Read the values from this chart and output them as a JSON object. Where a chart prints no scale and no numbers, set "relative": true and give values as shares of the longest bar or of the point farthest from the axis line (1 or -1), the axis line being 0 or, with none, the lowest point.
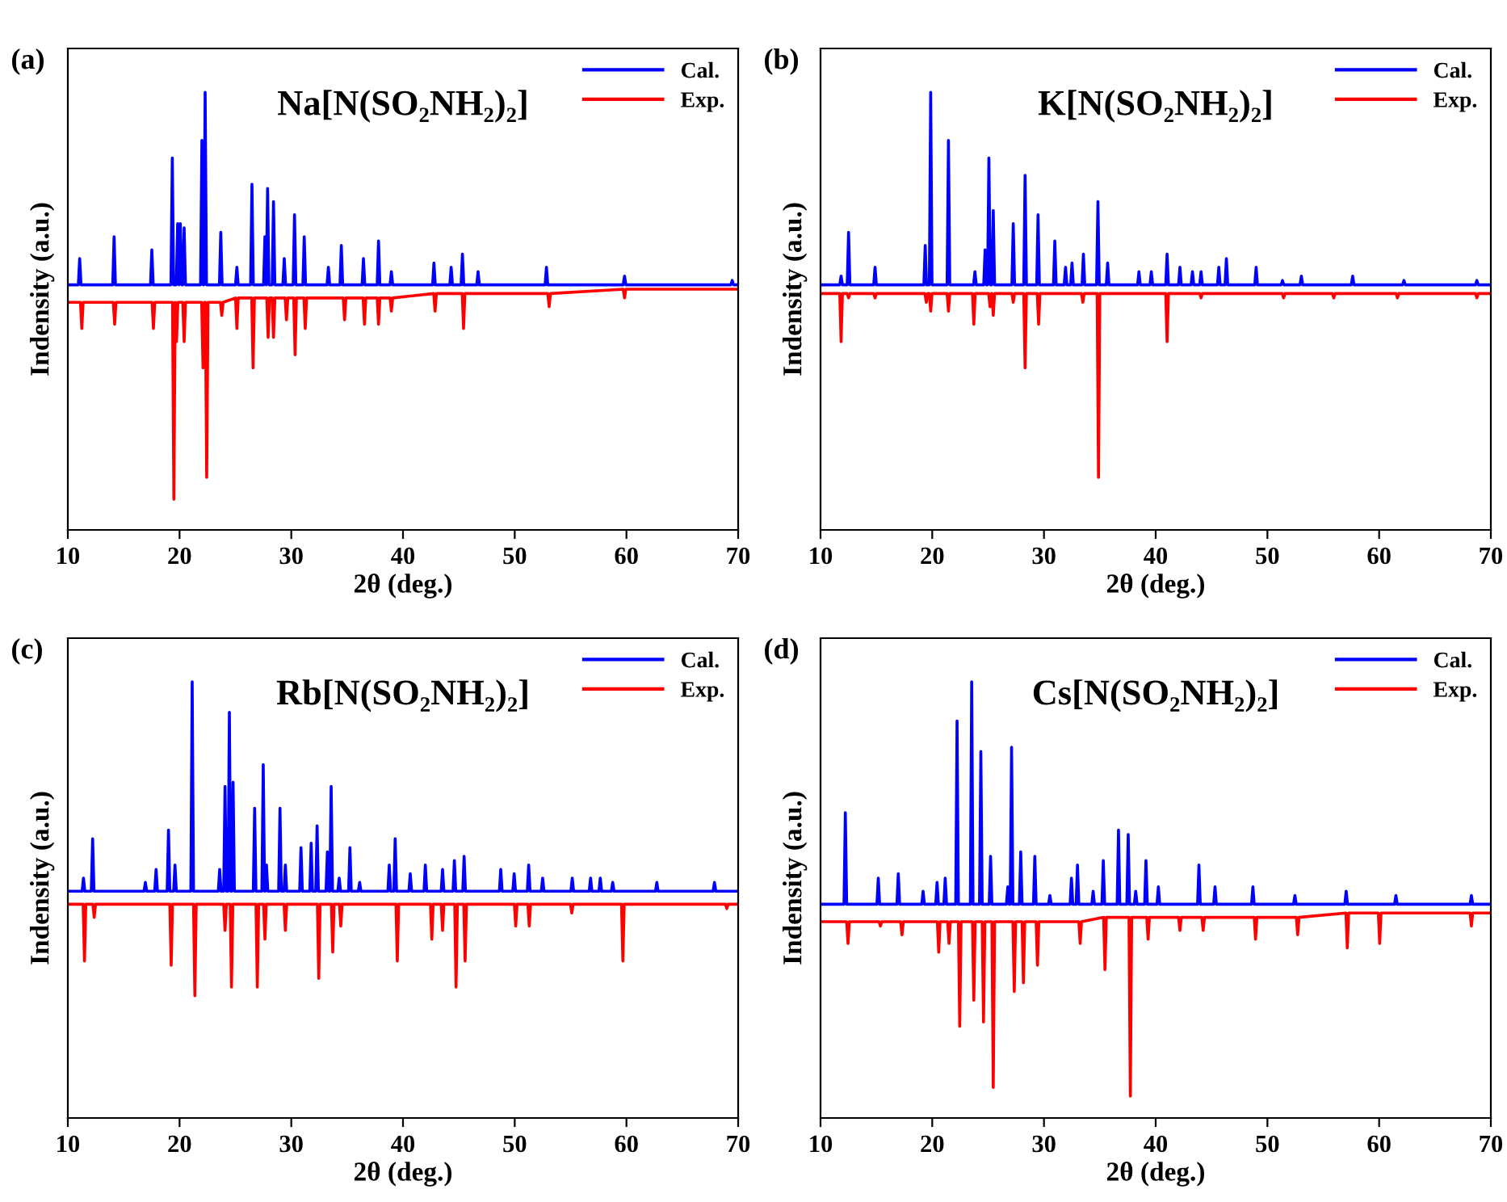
{
  "chart_data": [
    {
      "type": "line",
      "title": "Na[N(SO₂NH₂)₂]",
      "xlabel": "2θ (deg.)",
      "ylabel": "Indensity (a.u.)",
      "annotations": [
        "(a)"
      ],
      "relative": true,
      "xlim": [
        10,
        70
      ],
      "xticks": [
        10,
        20,
        30,
        40,
        50,
        60,
        70
      ],
      "tick_labels": "x",
      "legend": "top right",
      "grid": false,
      "marker": "none",
      "line_style": "solid",
      "series": [
        {
          "name": "Cal.",
          "color": "#0000ff",
          "x": [
            10,
            10.94,
            11.06,
            11.18,
            14.02,
            14.14,
            14.26,
            17.4,
            17.52,
            17.64,
            19.23,
            19.35,
            19.47,
            19.71,
            19.83,
            19.95,
            19.95,
            20.07,
            20.19,
            20.29,
            20.41,
            20.53,
            21.88,
            22.0,
            22.12,
            22.17,
            22.29,
            22.41,
            23.57,
            23.69,
            23.81,
            25.01,
            25.13,
            25.25,
            26.36,
            26.48,
            26.6,
            27.52,
            27.64,
            27.76,
            27.76,
            27.88,
            28.0,
            28.29,
            28.41,
            28.53,
            29.25,
            29.37,
            29.49,
            30.17,
            30.29,
            30.41,
            31.04,
            31.16,
            31.28,
            33.2,
            33.32,
            33.44,
            34.36,
            34.48,
            34.6,
            36.34,
            36.46,
            36.58,
            37.69,
            37.81,
            37.93,
            38.84,
            38.96,
            39.08,
            42.65,
            42.77,
            42.89,
            44.19,
            44.31,
            44.43,
            45.2,
            45.32,
            45.44,
            46.6,
            46.72,
            46.84,
            52.72,
            52.84,
            52.96,
            59.71,
            59.83,
            59.95,
            69.35,
            69.47,
            69.59,
            70
          ],
          "values": [
            0.56,
            0.56,
            0.62,
            0.56,
            0.56,
            0.67,
            0.56,
            0.56,
            0.64,
            0.56,
            0.56,
            0.85,
            0.56,
            0.56,
            0.7,
            0.56,
            0.56,
            0.7,
            0.56,
            0.56,
            0.69,
            0.56,
            0.56,
            0.89,
            0.56,
            0.56,
            1.0,
            0.56,
            0.56,
            0.68,
            0.56,
            0.56,
            0.6,
            0.56,
            0.56,
            0.79,
            0.56,
            0.56,
            0.67,
            0.56,
            0.56,
            0.78,
            0.56,
            0.56,
            0.75,
            0.56,
            0.56,
            0.62,
            0.56,
            0.56,
            0.72,
            0.56,
            0.56,
            0.67,
            0.56,
            0.56,
            0.6,
            0.56,
            0.56,
            0.65,
            0.56,
            0.56,
            0.62,
            0.56,
            0.56,
            0.66,
            0.56,
            0.56,
            0.59,
            0.56,
            0.56,
            0.61,
            0.56,
            0.56,
            0.6,
            0.56,
            0.56,
            0.63,
            0.56,
            0.56,
            0.59,
            0.56,
            0.56,
            0.6,
            0.56,
            0.56,
            0.58,
            0.56,
            0.56,
            0.57,
            0.56,
            0.56
          ]
        },
        {
          "name": "Exp.",
          "color": "#ff0000",
          "x": [
            10,
            11.13,
            11.25,
            11.37,
            14.07,
            14.19,
            14.31,
            17.54,
            17.66,
            17.78,
            19.37,
            19.49,
            19.61,
            19.61,
            19.73,
            19.85,
            20.29,
            20.41,
            20.53,
            21.98,
            22.1,
            22.22,
            22.31,
            22.43,
            22.55,
            23.66,
            23.78,
            23.9,
            25.01,
            25.13,
            25.25,
            26.46,
            26.58,
            26.7,
            27.81,
            27.93,
            28.05,
            28.29,
            28.41,
            28.53,
            29.45,
            29.57,
            29.69,
            30.22,
            30.34,
            30.46,
            31.13,
            31.25,
            31.37,
            34.65,
            34.77,
            34.89,
            36.43,
            36.55,
            36.67,
            37.69,
            37.81,
            37.93,
            38.84,
            38.96,
            39.08,
            42.75,
            42.87,
            42.99,
            45.3,
            45.42,
            45.54,
            52.96,
            53.08,
            53.2,
            59.71,
            59.83,
            59.95,
            70
          ],
          "values": [
            0.52,
            0.52,
            0.46,
            0.52,
            0.52,
            0.47,
            0.52,
            0.52,
            0.46,
            0.52,
            0.52,
            0.07,
            0.52,
            0.52,
            0.43,
            0.52,
            0.52,
            0.43,
            0.52,
            0.52,
            0.37,
            0.52,
            0.52,
            0.12,
            0.52,
            0.52,
            0.49,
            0.52,
            0.53,
            0.46,
            0.53,
            0.53,
            0.37,
            0.53,
            0.53,
            0.44,
            0.53,
            0.53,
            0.44,
            0.53,
            0.53,
            0.48,
            0.53,
            0.53,
            0.4,
            0.53,
            0.53,
            0.46,
            0.53,
            0.53,
            0.48,
            0.53,
            0.53,
            0.47,
            0.53,
            0.53,
            0.47,
            0.53,
            0.53,
            0.5,
            0.53,
            0.54,
            0.5,
            0.54,
            0.54,
            0.46,
            0.54,
            0.54,
            0.51,
            0.54,
            0.55,
            0.53,
            0.55,
            0.55
          ]
        }
      ]
    },
    {
      "type": "line",
      "title": "K[N(SO₂NH₂)₂]",
      "xlabel": "2θ (deg.)",
      "ylabel": "Indensity (a.u.)",
      "annotations": [
        "(b)"
      ],
      "relative": true,
      "xlim": [
        10,
        70
      ],
      "xticks": [
        10,
        20,
        30,
        40,
        50,
        60,
        70
      ],
      "tick_labels": "x",
      "legend": "top right",
      "grid": false,
      "marker": "none",
      "line_style": "solid",
      "series": [
        {
          "name": "Cal.",
          "color": "#0000ff",
          "x": [
            10,
            11.72,
            11.84,
            11.96,
            12.39,
            12.51,
            12.63,
            14.76,
            14.88,
            15.0,
            19.25,
            19.37,
            19.49,
            19.74,
            19.86,
            19.98,
            21.33,
            21.45,
            21.57,
            23.7,
            23.82,
            23.94,
            24.61,
            24.73,
            24.85,
            24.95,
            25.07,
            25.19,
            25.34,
            25.46,
            25.58,
            27.13,
            27.25,
            27.37,
            28.19,
            28.31,
            28.43,
            29.35,
            29.47,
            29.59,
            30.85,
            30.97,
            31.09,
            31.81,
            31.93,
            32.05,
            32.39,
            32.51,
            32.63,
            33.41,
            33.53,
            33.65,
            34.71,
            34.83,
            34.95,
            35.58,
            35.7,
            35.82,
            38.38,
            38.5,
            38.62,
            39.49,
            39.61,
            39.73,
            40.9,
            41.02,
            41.14,
            42.05,
            42.17,
            42.29,
            43.17,
            43.29,
            43.41,
            43.94,
            44.06,
            44.18,
            45.53,
            45.65,
            45.77,
            46.21,
            46.33,
            46.45,
            48.87,
            48.99,
            49.11,
            51.23,
            51.35,
            51.47,
            52.92,
            53.04,
            53.16,
            57.51,
            57.63,
            57.75,
            62.1,
            62.22,
            62.34,
            68.63,
            68.75,
            68.87,
            70
          ],
          "values": [
            0.56,
            0.56,
            0.58,
            0.56,
            0.56,
            0.68,
            0.56,
            0.56,
            0.6,
            0.56,
            0.56,
            0.65,
            0.56,
            0.56,
            1.0,
            0.56,
            0.56,
            0.89,
            0.56,
            0.56,
            0.59,
            0.56,
            0.56,
            0.64,
            0.56,
            0.56,
            0.85,
            0.56,
            0.56,
            0.73,
            0.56,
            0.56,
            0.7,
            0.56,
            0.56,
            0.81,
            0.56,
            0.56,
            0.72,
            0.56,
            0.56,
            0.66,
            0.56,
            0.56,
            0.6,
            0.56,
            0.56,
            0.61,
            0.56,
            0.56,
            0.63,
            0.56,
            0.56,
            0.75,
            0.56,
            0.56,
            0.61,
            0.56,
            0.56,
            0.59,
            0.56,
            0.56,
            0.59,
            0.56,
            0.56,
            0.63,
            0.56,
            0.56,
            0.6,
            0.56,
            0.56,
            0.59,
            0.56,
            0.56,
            0.59,
            0.56,
            0.56,
            0.6,
            0.56,
            0.56,
            0.62,
            0.56,
            0.56,
            0.6,
            0.56,
            0.56,
            0.57,
            0.56,
            0.56,
            0.58,
            0.56,
            0.56,
            0.58,
            0.56,
            0.56,
            0.57,
            0.56,
            0.56,
            0.57,
            0.56,
            0.56
          ]
        },
        {
          "name": "Exp.",
          "color": "#ff0000",
          "x": [
            10,
            11.72,
            11.84,
            11.96,
            12.39,
            12.51,
            12.63,
            14.76,
            14.88,
            15.0,
            19.35,
            19.47,
            19.59,
            19.74,
            19.86,
            19.98,
            21.33,
            21.45,
            21.57,
            23.6,
            23.72,
            23.84,
            25.05,
            25.17,
            25.29,
            25.34,
            25.46,
            25.58,
            27.13,
            27.25,
            27.37,
            28.19,
            28.31,
            28.43,
            29.4,
            29.52,
            29.64,
            33.36,
            33.48,
            33.6,
            34.76,
            34.88,
            35.0,
            40.9,
            41.02,
            41.14,
            43.94,
            44.06,
            44.18,
            51.33,
            51.45,
            51.57,
            55.82,
            55.94,
            56.06,
            61.52,
            61.64,
            61.76,
            68.63,
            68.75,
            68.87,
            70
          ],
          "values": [
            0.54,
            0.54,
            0.43,
            0.54,
            0.54,
            0.53,
            0.54,
            0.54,
            0.53,
            0.54,
            0.54,
            0.52,
            0.54,
            0.54,
            0.5,
            0.54,
            0.54,
            0.5,
            0.54,
            0.54,
            0.47,
            0.54,
            0.54,
            0.51,
            0.54,
            0.54,
            0.49,
            0.54,
            0.54,
            0.52,
            0.54,
            0.54,
            0.37,
            0.54,
            0.54,
            0.47,
            0.54,
            0.54,
            0.52,
            0.54,
            0.54,
            0.12,
            0.54,
            0.54,
            0.43,
            0.54,
            0.54,
            0.53,
            0.54,
            0.54,
            0.53,
            0.54,
            0.54,
            0.53,
            0.54,
            0.54,
            0.53,
            0.54,
            0.54,
            0.53,
            0.54,
            0.54
          ]
        }
      ]
    },
    {
      "type": "line",
      "title": "Rb[N(SO₂NH₂)₂]",
      "xlabel": "2θ (deg.)",
      "ylabel": "Indensity (a.u.)",
      "annotations": [
        "(c)"
      ],
      "relative": true,
      "xlim": [
        10,
        70
      ],
      "xticks": [
        10,
        20,
        30,
        40,
        50,
        60,
        70
      ],
      "tick_labels": "x",
      "legend": "top right",
      "grid": false,
      "marker": "none",
      "line_style": "solid",
      "series": [
        {
          "name": "Cal.",
          "color": "#0000ff",
          "x": [
            10,
            11.28,
            11.4,
            11.52,
            12.1,
            12.22,
            12.34,
            16.82,
            16.94,
            17.06,
            17.78,
            17.9,
            18.02,
            18.89,
            19.01,
            19.13,
            19.47,
            19.59,
            19.71,
            21.01,
            21.13,
            21.25,
            23.47,
            23.59,
            23.71,
            23.95,
            24.07,
            24.19,
            24.34,
            24.46,
            24.58,
            24.67,
            24.79,
            24.91,
            26.6,
            26.72,
            26.84,
            27.37,
            27.49,
            27.61,
            27.66,
            27.78,
            27.9,
            28.87,
            28.99,
            29.11,
            29.35,
            29.47,
            29.59,
            30.75,
            30.87,
            30.99,
            31.66,
            31.78,
            31.9,
            32.19,
            32.31,
            32.43,
            33.11,
            33.23,
            33.35,
            33.45,
            33.57,
            33.69,
            34.17,
            34.29,
            34.41,
            35.13,
            35.25,
            35.37,
            36.0,
            36.12,
            36.24,
            38.65,
            38.77,
            38.89,
            39.18,
            39.3,
            39.42,
            40.53,
            40.65,
            40.77,
            41.88,
            42.0,
            42.12,
            43.42,
            43.54,
            43.66,
            44.48,
            44.6,
            44.72,
            45.35,
            45.47,
            45.59,
            48.63,
            48.75,
            48.87,
            49.83,
            49.95,
            50.07,
            51.13,
            51.25,
            51.37,
            52.38,
            52.5,
            52.62,
            55.03,
            55.15,
            55.27,
            56.67,
            56.79,
            56.91,
            57.54,
            57.66,
            57.78,
            58.65,
            58.77,
            58.89,
            62.6,
            62.72,
            62.84,
            67.76,
            67.88,
            68.0,
            70
          ],
          "values": [
            0.52,
            0.52,
            0.55,
            0.52,
            0.52,
            0.64,
            0.52,
            0.52,
            0.54,
            0.52,
            0.52,
            0.57,
            0.52,
            0.52,
            0.66,
            0.52,
            0.52,
            0.58,
            0.52,
            0.52,
            1.0,
            0.52,
            0.52,
            0.57,
            0.52,
            0.52,
            0.76,
            0.52,
            0.52,
            0.93,
            0.52,
            0.52,
            0.77,
            0.52,
            0.52,
            0.71,
            0.52,
            0.52,
            0.81,
            0.52,
            0.52,
            0.58,
            0.52,
            0.52,
            0.71,
            0.52,
            0.52,
            0.58,
            0.52,
            0.52,
            0.62,
            0.52,
            0.52,
            0.63,
            0.52,
            0.52,
            0.67,
            0.52,
            0.52,
            0.61,
            0.52,
            0.52,
            0.76,
            0.52,
            0.52,
            0.55,
            0.52,
            0.52,
            0.62,
            0.52,
            0.52,
            0.54,
            0.52,
            0.52,
            0.58,
            0.52,
            0.52,
            0.64,
            0.52,
            0.52,
            0.56,
            0.52,
            0.52,
            0.58,
            0.52,
            0.52,
            0.57,
            0.52,
            0.52,
            0.59,
            0.52,
            0.52,
            0.6,
            0.52,
            0.52,
            0.57,
            0.52,
            0.52,
            0.56,
            0.52,
            0.52,
            0.58,
            0.52,
            0.52,
            0.55,
            0.52,
            0.52,
            0.55,
            0.52,
            0.52,
            0.55,
            0.52,
            0.52,
            0.55,
            0.52,
            0.52,
            0.54,
            0.52,
            0.52,
            0.54,
            0.52,
            0.52,
            0.54,
            0.52,
            0.52
          ]
        },
        {
          "name": "Exp.",
          "color": "#ff0000",
          "x": [
            10,
            11.37,
            11.49,
            11.61,
            12.24,
            12.36,
            12.48,
            19.13,
            19.25,
            19.37,
            21.25,
            21.37,
            21.49,
            23.95,
            24.07,
            24.19,
            24.53,
            24.65,
            24.77,
            26.84,
            26.96,
            27.08,
            27.52,
            27.64,
            27.76,
            29.35,
            29.47,
            29.59,
            32.34,
            32.46,
            32.58,
            33.59,
            33.71,
            33.83,
            34.31,
            34.43,
            34.55,
            39.37,
            39.49,
            39.61,
            42.46,
            42.58,
            42.7,
            43.42,
            43.54,
            43.66,
            44.63,
            44.75,
            44.87,
            45.44,
            45.56,
            45.68,
            49.97,
            50.09,
            50.21,
            51.18,
            51.3,
            51.42,
            54.99,
            55.11,
            55.23,
            59.56,
            59.68,
            59.8,
            68.86,
            68.98,
            69.1,
            70
          ],
          "values": [
            0.49,
            0.49,
            0.36,
            0.49,
            0.49,
            0.46,
            0.49,
            0.49,
            0.35,
            0.49,
            0.49,
            0.28,
            0.49,
            0.49,
            0.43,
            0.49,
            0.49,
            0.3,
            0.49,
            0.49,
            0.3,
            0.49,
            0.49,
            0.41,
            0.49,
            0.49,
            0.43,
            0.49,
            0.49,
            0.32,
            0.49,
            0.49,
            0.38,
            0.49,
            0.49,
            0.44,
            0.49,
            0.49,
            0.36,
            0.49,
            0.49,
            0.41,
            0.49,
            0.49,
            0.43,
            0.49,
            0.49,
            0.3,
            0.49,
            0.49,
            0.36,
            0.49,
            0.49,
            0.44,
            0.49,
            0.49,
            0.44,
            0.49,
            0.49,
            0.47,
            0.49,
            0.49,
            0.36,
            0.49,
            0.49,
            0.48,
            0.49,
            0.49
          ]
        }
      ]
    },
    {
      "type": "line",
      "title": "Cs[N(SO₂NH₂)₂]",
      "xlabel": "2θ (deg.)",
      "ylabel": "Indensity (a.u.)",
      "annotations": [
        "(d)"
      ],
      "relative": true,
      "xlim": [
        10,
        70
      ],
      "xticks": [
        10,
        20,
        30,
        40,
        50,
        60,
        70
      ],
      "tick_labels": "x",
      "legend": "top right",
      "grid": false,
      "marker": "none",
      "line_style": "solid",
      "series": [
        {
          "name": "Cal.",
          "color": "#0000ff",
          "x": [
            10,
            12.1,
            12.22,
            12.34,
            15.05,
            15.17,
            15.29,
            16.84,
            16.96,
            17.08,
            19.06,
            19.18,
            19.3,
            20.31,
            20.43,
            20.55,
            21.04,
            21.16,
            21.28,
            22.1,
            22.22,
            22.34,
            23.41,
            23.53,
            23.65,
            24.23,
            24.35,
            24.47,
            25.1,
            25.22,
            25.34,
            26.64,
            26.76,
            26.88,
            26.98,
            27.1,
            27.22,
            27.8,
            27.92,
            28.04,
            29.06,
            29.18,
            29.3,
            30.41,
            30.53,
            30.65,
            32.34,
            32.46,
            32.58,
            32.88,
            33.0,
            33.12,
            34.28,
            34.4,
            34.52,
            35.19,
            35.31,
            35.43,
            36.55,
            36.67,
            36.79,
            37.42,
            37.54,
            37.66,
            38.09,
            38.21,
            38.33,
            39.01,
            39.13,
            39.25,
            40.12,
            40.24,
            40.36,
            43.75,
            43.87,
            43.99,
            45.19,
            45.31,
            45.43,
            48.58,
            48.7,
            48.82,
            52.34,
            52.46,
            52.58,
            56.93,
            57.05,
            57.17,
            61.38,
            61.5,
            61.62,
            68.14,
            68.26,
            68.38,
            70
          ],
          "values": [
            0.49,
            0.49,
            0.7,
            0.49,
            0.49,
            0.55,
            0.49,
            0.49,
            0.56,
            0.49,
            0.49,
            0.52,
            0.49,
            0.49,
            0.54,
            0.49,
            0.49,
            0.55,
            0.49,
            0.49,
            0.91,
            0.49,
            0.49,
            1.0,
            0.49,
            0.49,
            0.84,
            0.49,
            0.49,
            0.6,
            0.49,
            0.49,
            0.53,
            0.49,
            0.49,
            0.85,
            0.49,
            0.49,
            0.61,
            0.49,
            0.49,
            0.6,
            0.49,
            0.49,
            0.51,
            0.49,
            0.49,
            0.55,
            0.49,
            0.49,
            0.58,
            0.49,
            0.49,
            0.52,
            0.49,
            0.49,
            0.59,
            0.49,
            0.49,
            0.66,
            0.49,
            0.49,
            0.65,
            0.49,
            0.49,
            0.52,
            0.49,
            0.49,
            0.59,
            0.49,
            0.49,
            0.53,
            0.49,
            0.49,
            0.58,
            0.49,
            0.49,
            0.53,
            0.49,
            0.49,
            0.53,
            0.49,
            0.49,
            0.51,
            0.49,
            0.49,
            0.52,
            0.49,
            0.49,
            0.51,
            0.49,
            0.49,
            0.51,
            0.49,
            0.49
          ]
        },
        {
          "name": "Exp.",
          "color": "#ff0000",
          "x": [
            10,
            12.34,
            12.46,
            12.58,
            15.24,
            15.36,
            15.48,
            17.17,
            17.29,
            17.41,
            20.46,
            20.58,
            20.7,
            21.38,
            21.5,
            21.62,
            22.34,
            22.46,
            22.58,
            23.6,
            23.72,
            23.84,
            24.47,
            24.59,
            24.71,
            25.34,
            25.46,
            25.58,
            27.22,
            27.34,
            27.46,
            28.04,
            28.16,
            28.28,
            29.3,
            29.42,
            29.54,
            33.12,
            33.24,
            33.36,
            35.34,
            35.46,
            35.58,
            37.61,
            37.73,
            37.85,
            39.2,
            39.32,
            39.44,
            42.05,
            42.17,
            42.29,
            44.13,
            44.25,
            44.37,
            48.82,
            48.94,
            49.06,
            52.59,
            52.71,
            52.83,
            57.03,
            57.15,
            57.27,
            59.93,
            60.05,
            60.17,
            68.14,
            68.26,
            68.38,
            70
          ],
          "values": [
            0.45,
            0.45,
            0.4,
            0.45,
            0.45,
            0.44,
            0.45,
            0.45,
            0.42,
            0.45,
            0.45,
            0.38,
            0.45,
            0.45,
            0.4,
            0.45,
            0.45,
            0.21,
            0.45,
            0.45,
            0.27,
            0.45,
            0.45,
            0.22,
            0.45,
            0.45,
            0.07,
            0.45,
            0.45,
            0.29,
            0.45,
            0.45,
            0.31,
            0.45,
            0.45,
            0.35,
            0.45,
            0.45,
            0.4,
            0.45,
            0.46,
            0.34,
            0.46,
            0.46,
            0.05,
            0.46,
            0.46,
            0.41,
            0.46,
            0.46,
            0.43,
            0.46,
            0.46,
            0.43,
            0.46,
            0.46,
            0.41,
            0.46,
            0.46,
            0.42,
            0.46,
            0.47,
            0.39,
            0.47,
            0.47,
            0.4,
            0.47,
            0.47,
            0.44,
            0.47,
            0.47
          ]
        }
      ]
    }
  ]
}
